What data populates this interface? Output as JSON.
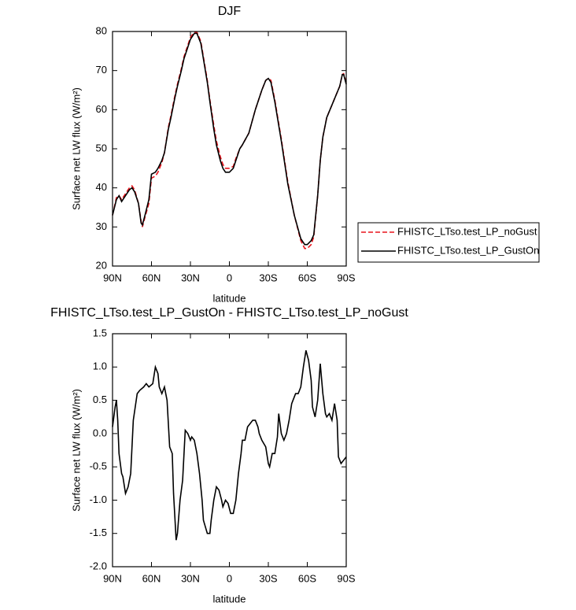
{
  "chart_data": [
    {
      "type": "line",
      "title": "DJF",
      "xlabel": "latitude",
      "ylabel": "Surface net LW flux (W/m²)",
      "xlim": [
        90,
        -90
      ],
      "xticks": [
        {
          "value": 90,
          "label": "90N"
        },
        {
          "value": 60,
          "label": "60N"
        },
        {
          "value": 30,
          "label": "30N"
        },
        0,
        {
          "value": -30,
          "label": "30S"
        },
        {
          "value": -60,
          "label": "60S"
        },
        {
          "value": -90,
          "label": "90S"
        }
      ],
      "ylim": [
        20,
        80
      ],
      "yticks": [
        20,
        30,
        40,
        50,
        60,
        70,
        80
      ],
      "legend": "right",
      "x": [
        90,
        87,
        85,
        83,
        80,
        77,
        75,
        73,
        70,
        68,
        67,
        65,
        62,
        60,
        57,
        55,
        52,
        50,
        47,
        45,
        42,
        40,
        37,
        35,
        32,
        30,
        27,
        25,
        22,
        20,
        17,
        15,
        12,
        10,
        7,
        5,
        3,
        0,
        -3,
        -5,
        -8,
        -10,
        -15,
        -20,
        -25,
        -28,
        -30,
        -32,
        -35,
        -40,
        -45,
        -50,
        -55,
        -58,
        -60,
        -63,
        -65,
        -68,
        -70,
        -72,
        -75,
        -80,
        -85,
        -87,
        -88,
        -90
      ],
      "series": [
        {
          "name": "FHISTC_LTso.test_LP_noGust",
          "color": "#e8141c",
          "linestyle": "dashed",
          "values": [
            33,
            37.5,
            38,
            37,
            38.5,
            40,
            40.5,
            39.5,
            36,
            31.5,
            30,
            32.5,
            36,
            42.5,
            43,
            44,
            46.5,
            49,
            55.5,
            58.5,
            63.5,
            66.5,
            70.5,
            73.5,
            76.5,
            78.5,
            79.8,
            79.8,
            77.5,
            73.5,
            67.5,
            62.5,
            56,
            52,
            48,
            46,
            45,
            45,
            45.5,
            47.5,
            50,
            51,
            54,
            60,
            65,
            67.5,
            68,
            67.5,
            62.5,
            52.5,
            41.5,
            33,
            26.5,
            24.5,
            24.5,
            25.5,
            27.5,
            38,
            47,
            53,
            58,
            62,
            66,
            69,
            69.2,
            67
          ]
        },
        {
          "name": "FHISTC_LTso.test_LP_GustOn",
          "color": "#000000",
          "linestyle": "solid",
          "values": [
            33,
            37,
            38,
            36.5,
            38,
            39.5,
            40,
            39,
            36,
            31,
            30.5,
            33,
            37,
            43.5,
            44,
            45,
            47,
            49,
            55,
            58,
            63,
            66,
            70,
            73,
            76,
            78,
            79.5,
            79.5,
            77,
            73,
            67,
            62,
            55,
            51,
            47,
            45,
            44,
            44,
            45,
            47,
            50,
            51,
            54,
            60,
            65,
            67.5,
            68,
            67,
            62,
            52,
            41,
            33,
            27,
            25.5,
            25.5,
            26.5,
            28,
            38,
            47,
            53,
            58,
            62,
            66,
            69,
            69,
            66.5
          ]
        }
      ]
    },
    {
      "type": "line",
      "title": "FHISTC_LTso.test_LP_GustOn - FHISTC_LTso.test_LP_noGust",
      "xlabel": "latitude",
      "ylabel": "Surface net LW flux (W/m²)",
      "xlim": [
        90,
        -90
      ],
      "xticks": [
        {
          "value": 90,
          "label": "90N"
        },
        {
          "value": 60,
          "label": "60N"
        },
        {
          "value": 30,
          "label": "30N"
        },
        0,
        {
          "value": -30,
          "label": "30S"
        },
        {
          "value": -60,
          "label": "60S"
        },
        {
          "value": -90,
          "label": "90S"
        }
      ],
      "ylim": [
        -2,
        1.5
      ],
      "yticks": [
        {
          "value": -2,
          "label": "-2.0"
        },
        -1.5,
        {
          "value": -1,
          "label": "-1.0"
        },
        -0.5,
        {
          "value": 0,
          "label": "0.0"
        },
        0.5,
        {
          "value": 1,
          "label": "1.0"
        },
        1.5
      ],
      "x": [
        90,
        88,
        87,
        86,
        85,
        83,
        82,
        80,
        78,
        76,
        74,
        71,
        69,
        66,
        64,
        62,
        59,
        57,
        55,
        54,
        52,
        50,
        48,
        46,
        44,
        43,
        41,
        40,
        38,
        36,
        34,
        32,
        30,
        29,
        27,
        25,
        23,
        21,
        20,
        17,
        15,
        14,
        12,
        10,
        8,
        6,
        5,
        3,
        1,
        -1,
        -3,
        -5,
        -7,
        -9,
        -10,
        -12,
        -14,
        -16,
        -18,
        -20,
        -22,
        -23,
        -25,
        -28,
        -30,
        -31,
        -33,
        -35,
        -37,
        -38,
        -40,
        -42,
        -44,
        -46,
        -48,
        -49,
        -51,
        -53,
        -55,
        -57,
        -59,
        -61,
        -63,
        -64,
        -66,
        -68,
        -70,
        -72,
        -74,
        -75,
        -77,
        -79,
        -81,
        -83,
        -84,
        -86,
        -88,
        -90
      ],
      "series": [
        {
          "color": "#000000",
          "linestyle": "solid",
          "values": [
            0.1,
            0.4,
            0.5,
            0.2,
            -0.3,
            -0.6,
            -0.65,
            -0.9,
            -0.8,
            -0.6,
            0.2,
            0.6,
            0.65,
            0.7,
            0.75,
            0.7,
            0.75,
            1.0,
            0.9,
            0.7,
            0.6,
            0.7,
            0.5,
            -0.2,
            -0.3,
            -0.9,
            -1.6,
            -1.5,
            -1.0,
            -0.7,
            0.05,
            0.0,
            -0.1,
            -0.05,
            -0.1,
            -0.3,
            -0.6,
            -1.0,
            -1.3,
            -1.5,
            -1.5,
            -1.3,
            -1.0,
            -0.8,
            -0.85,
            -1.0,
            -1.1,
            -1.0,
            -1.05,
            -1.2,
            -1.2,
            -1.0,
            -0.6,
            -0.3,
            -0.1,
            -0.1,
            0.1,
            0.15,
            0.2,
            0.2,
            0.1,
            0.0,
            -0.1,
            -0.2,
            -0.45,
            -0.5,
            -0.3,
            -0.3,
            -0.05,
            0.3,
            0.0,
            -0.1,
            0.0,
            0.2,
            0.45,
            0.5,
            0.6,
            0.6,
            0.7,
            1.0,
            1.25,
            1.1,
            0.8,
            0.4,
            0.25,
            0.5,
            1.05,
            0.6,
            0.3,
            0.25,
            0.3,
            0.2,
            0.45,
            0.2,
            -0.35,
            -0.45,
            -0.4,
            -0.35
          ]
        }
      ]
    }
  ]
}
